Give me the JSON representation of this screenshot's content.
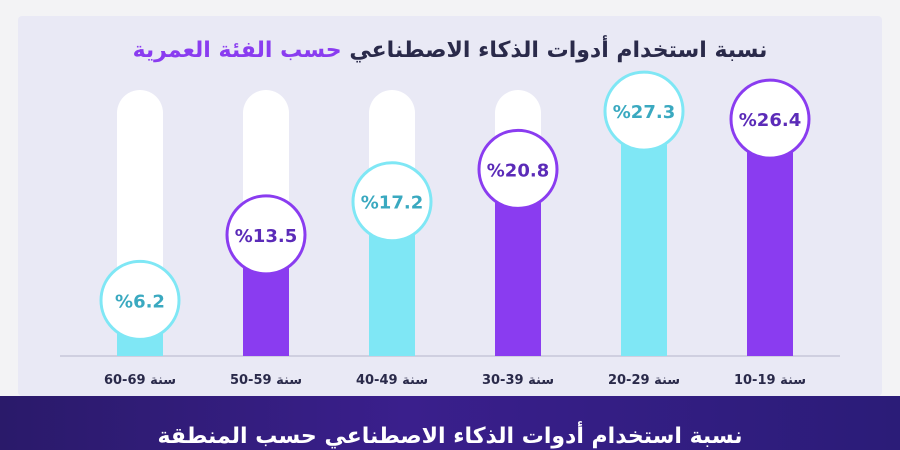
{
  "chart_data": {
    "type": "bar",
    "title_main": "نسبة استخدام أدوات الذكاء الاصطناعي",
    "title_highlight": "حسب الفئة العمرية",
    "categories": [
      "10-19 سنة",
      "20-29 سنة",
      "30-39 سنة",
      "40-49 سنة",
      "50-59 سنة",
      "60-69 سنة"
    ],
    "values": [
      26.4,
      27.3,
      20.8,
      17.2,
      13.5,
      6.2
    ],
    "value_labels": [
      "%26.4",
      "%27.3",
      "%20.8",
      "%17.2",
      "%13.5",
      "%6.2"
    ],
    "ylim": [
      0,
      35
    ],
    "grid": false,
    "colors": [
      "#8a3cf0",
      "#7fe7f5",
      "#8a3cf0",
      "#7fe7f5",
      "#8a3cf0",
      "#7fe7f5"
    ],
    "track_color": "#ffffff"
  },
  "footer": {
    "title": "نسبة استخدام أدوات الذكاء الاصطناعي حسب المنطقة"
  }
}
